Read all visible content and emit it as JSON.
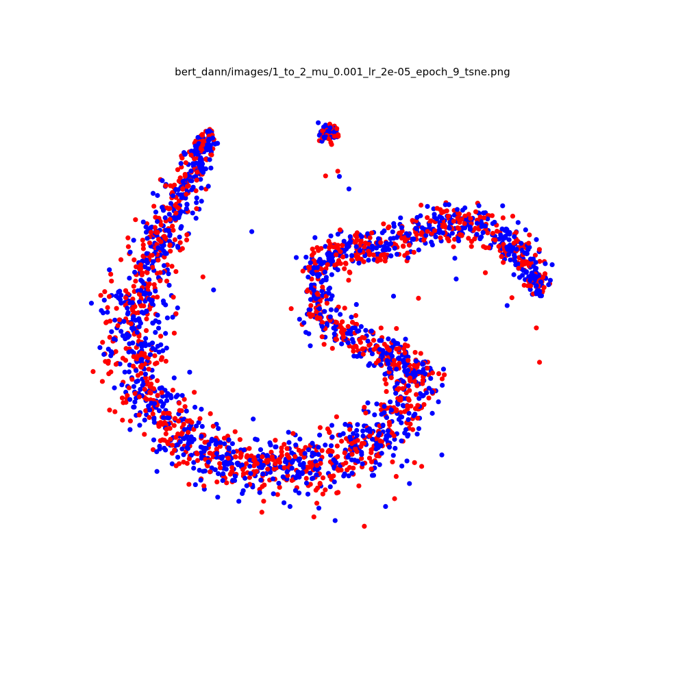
{
  "chart_data": {
    "type": "scatter",
    "title": "bert_dann/images/1_to_2_mu_0.001_lr_2e-05_epoch_9_tsne.png",
    "axes_visible": false,
    "grid": false,
    "legend": "none",
    "xlim": [
      0,
      100
    ],
    "ylim": [
      0,
      100
    ],
    "random_seed": 9,
    "series": [
      {
        "color": "#ff0000",
        "count": 1300,
        "points": [
          [
            45.2,
            82.0
          ],
          [
            47.5,
            82.9
          ],
          [
            22.1,
            62.6
          ],
          [
            16.7,
            51.8
          ],
          [
            17.5,
            34.9
          ],
          [
            26.0,
            24.3
          ],
          [
            33.2,
            17.4
          ],
          [
            43.0,
            16.5
          ],
          [
            52.5,
            14.7
          ],
          [
            58.2,
            20.0
          ],
          [
            63.3,
            26.2
          ],
          [
            62.3,
            42.3
          ],
          [
            56.7,
            45.9
          ],
          [
            50.9,
            49.3
          ],
          [
            48.8,
            56.6
          ],
          [
            62.7,
            58.5
          ],
          [
            75.3,
            63.4
          ],
          [
            80.3,
            58.6
          ],
          [
            84.9,
            52.8
          ],
          [
            85.5,
            46.2
          ]
        ]
      },
      {
        "color": "#0000ff",
        "count": 1500,
        "points": [
          [
            47.8,
            81.9
          ],
          [
            49.6,
            79.5
          ],
          [
            31.3,
            71.3
          ],
          [
            24.1,
            60.1
          ],
          [
            19.6,
            44.3
          ],
          [
            22.3,
            29.1
          ],
          [
            29.5,
            21.0
          ],
          [
            38.5,
            18.5
          ],
          [
            47.0,
            15.8
          ],
          [
            56.5,
            18.5
          ],
          [
            61.0,
            22.9
          ],
          [
            67.1,
            28.4
          ],
          [
            65.3,
            36.4
          ],
          [
            59.9,
            41.0
          ],
          [
            53.3,
            45.6
          ],
          [
            49.1,
            50.4
          ],
          [
            51.0,
            57.3
          ],
          [
            58.0,
            58.9
          ],
          [
            69.8,
            62.2
          ],
          [
            79.4,
            57.1
          ]
        ]
      }
    ]
  }
}
